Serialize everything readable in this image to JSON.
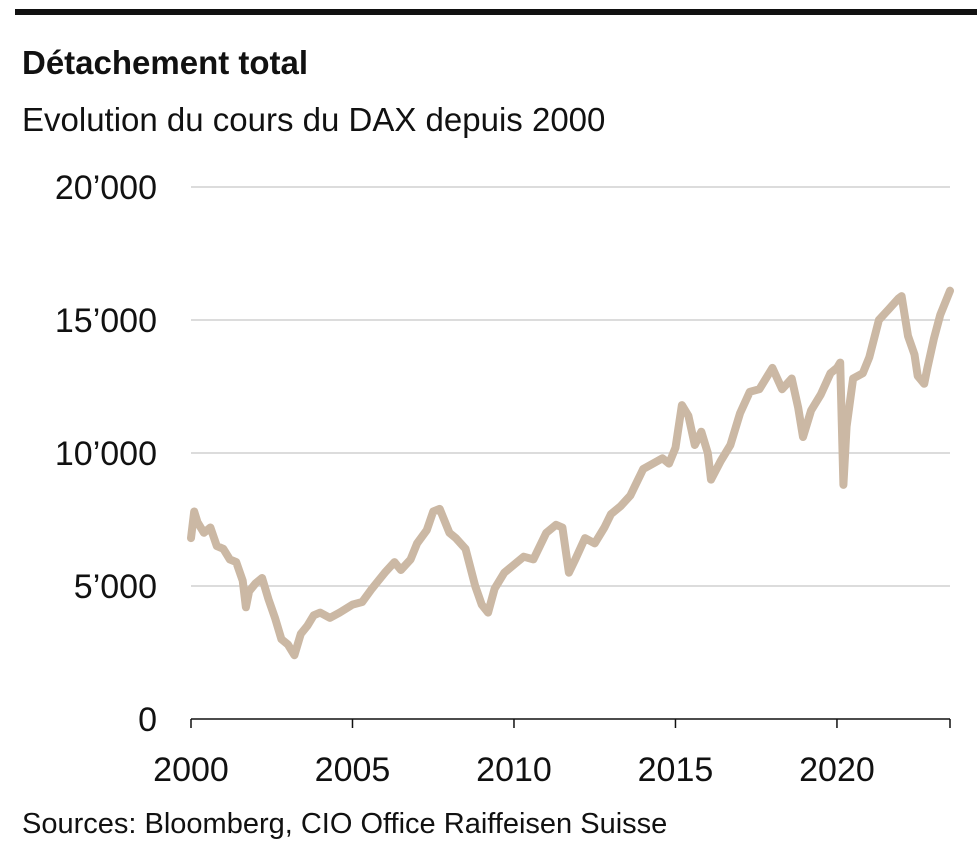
{
  "chart_data": {
    "type": "line",
    "title": "Détachement total",
    "subtitle": "Evolution du cours du DAX depuis 2000",
    "source": "Sources: Bloomberg, CIO Office Raiffeisen Suisse",
    "xlabel": "",
    "ylabel": "",
    "xlim": [
      2000,
      2023.5
    ],
    "ylim": [
      0,
      20000
    ],
    "x_ticks": [
      2000,
      2005,
      2010,
      2015,
      2020
    ],
    "x_tick_labels": [
      "2000",
      "2005",
      "2010",
      "2015",
      "2020"
    ],
    "y_ticks": [
      0,
      5000,
      10000,
      15000,
      20000
    ],
    "y_tick_labels": [
      "0",
      "5’000",
      "10’000",
      "15’000",
      "20’000"
    ],
    "grid": "horizontal",
    "line_color": "#cbb8a4",
    "series": [
      {
        "x": [
          2000.0,
          2000.1,
          2000.2,
          2000.4,
          2000.6,
          2000.8,
          2001.0,
          2001.2,
          2001.4,
          2001.6,
          2001.7,
          2001.8,
          2002.0,
          2002.2,
          2002.4,
          2002.6,
          2002.8,
          2003.0,
          2003.2,
          2003.4,
          2003.6,
          2003.8,
          2004.0,
          2004.3,
          2004.6,
          2005.0,
          2005.3,
          2005.6,
          2006.0,
          2006.3,
          2006.5,
          2006.8,
          2007.0,
          2007.3,
          2007.5,
          2007.7,
          2008.0,
          2008.2,
          2008.5,
          2008.8,
          2009.0,
          2009.2,
          2009.4,
          2009.7,
          2010.0,
          2010.3,
          2010.6,
          2011.0,
          2011.3,
          2011.5,
          2011.7,
          2011.9,
          2012.2,
          2012.5,
          2012.8,
          2013.0,
          2013.3,
          2013.6,
          2014.0,
          2014.3,
          2014.6,
          2014.8,
          2015.0,
          2015.2,
          2015.4,
          2015.6,
          2015.8,
          2016.0,
          2016.1,
          2016.4,
          2016.7,
          2017.0,
          2017.3,
          2017.6,
          2018.0,
          2018.3,
          2018.6,
          2018.8,
          2018.95,
          2019.2,
          2019.5,
          2019.8,
          2020.0,
          2020.1,
          2020.2,
          2020.3,
          2020.5,
          2020.8,
          2021.0,
          2021.3,
          2021.6,
          2021.9,
          2022.0,
          2022.2,
          2022.4,
          2022.5,
          2022.7,
          2022.8,
          2023.0,
          2023.2,
          2023.5
        ],
        "y": [
          6800,
          7800,
          7400,
          7000,
          7200,
          6500,
          6400,
          6000,
          5900,
          5200,
          4200,
          4800,
          5100,
          5300,
          4500,
          3800,
          3000,
          2800,
          2400,
          3200,
          3500,
          3900,
          4000,
          3800,
          4000,
          4300,
          4400,
          4900,
          5500,
          5900,
          5600,
          6000,
          6600,
          7100,
          7800,
          7900,
          7000,
          6800,
          6400,
          5000,
          4300,
          4000,
          4900,
          5500,
          5800,
          6100,
          6000,
          7000,
          7300,
          7200,
          5500,
          6000,
          6800,
          6600,
          7200,
          7700,
          8000,
          8400,
          9400,
          9600,
          9800,
          9600,
          10200,
          11800,
          11400,
          10300,
          10800,
          10000,
          9000,
          9700,
          10300,
          11500,
          12300,
          12400,
          13200,
          12400,
          12800,
          11700,
          10600,
          11600,
          12200,
          13000,
          13200,
          13400,
          8800,
          11000,
          12800,
          13000,
          13600,
          15000,
          15400,
          15800,
          15900,
          14400,
          13700,
          12900,
          12600,
          13200,
          14300,
          15200,
          16100
        ]
      }
    ]
  }
}
